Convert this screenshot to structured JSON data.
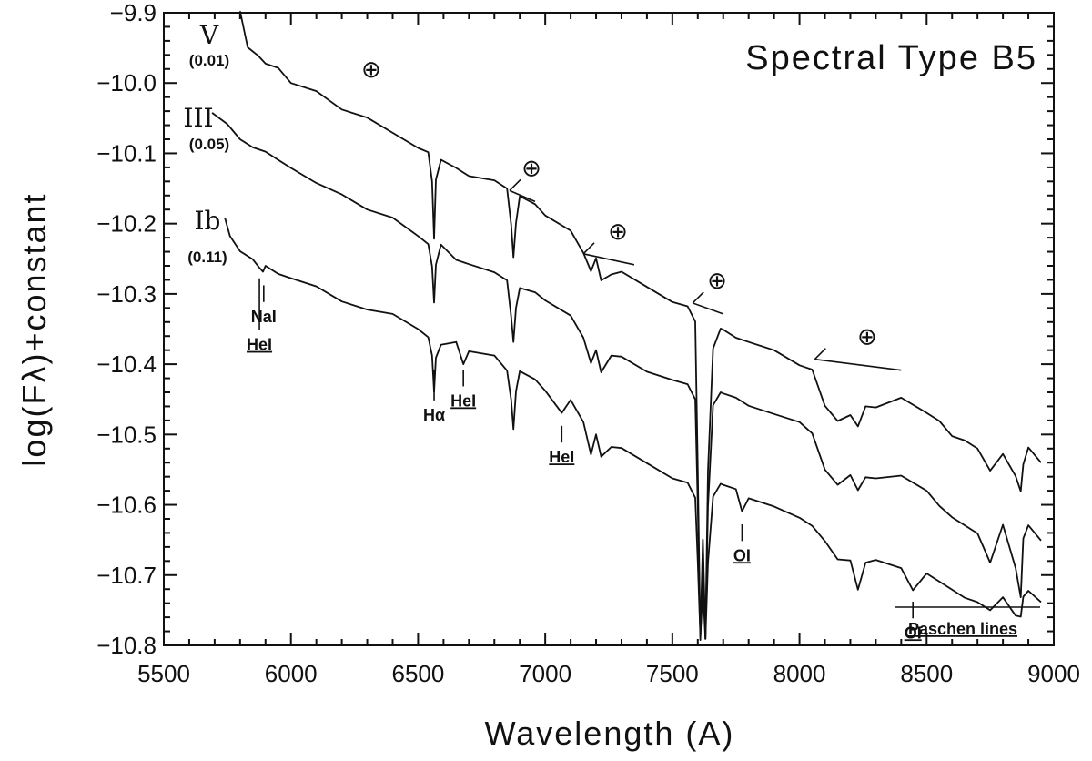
{
  "chart_data": {
    "type": "line",
    "title": "Spectral Type B5",
    "xlabel": "Wavelength (A)",
    "ylabel": "log(Fλ)+constant",
    "xlim": [
      5500,
      9000
    ],
    "ylim": [
      -10.8,
      -9.9
    ],
    "xticks": [
      5500,
      6000,
      6500,
      7000,
      7500,
      8000,
      8500,
      9000
    ],
    "yticks": [
      -9.9,
      -10.0,
      -10.1,
      -10.2,
      -10.3,
      -10.4,
      -10.5,
      -10.6,
      -10.7,
      -10.8
    ],
    "xtick_labels": [
      "5500",
      "6000",
      "6500",
      "7000",
      "7500",
      "8000",
      "8500",
      "9000"
    ],
    "ytick_labels": [
      "−9.9",
      "−10.0",
      "−10.1",
      "−10.2",
      "−10.3",
      "−10.4",
      "−10.5",
      "−10.6",
      "−10.7",
      "−10.8"
    ],
    "series": [
      {
        "name": "V",
        "sublabel": "(0.01)",
        "x": [
          5800,
          5830,
          5870,
          5900,
          5950,
          6000,
          6100,
          6200,
          6300,
          6400,
          6500,
          6540,
          6555,
          6563,
          6570,
          6590,
          6650,
          6700,
          6800,
          6850,
          6866,
          6875,
          6885,
          6900,
          6960,
          7000,
          7100,
          7150,
          7180,
          7200,
          7220,
          7260,
          7300,
          7400,
          7500,
          7560,
          7590,
          7600,
          7610,
          7620,
          7630,
          7640,
          7660,
          7690,
          7700,
          7750,
          7800,
          7900,
          8000,
          8050,
          8100,
          8150,
          8200,
          8230,
          8260,
          8300,
          8400,
          8500,
          8550,
          8600,
          8650,
          8700,
          8750,
          8800,
          8850,
          8870,
          8880,
          8900,
          8950
        ],
        "values": [
          -9.9,
          -9.95,
          -9.96,
          -9.97,
          -9.98,
          -10.0,
          -10.01,
          -10.04,
          -10.05,
          -10.07,
          -10.09,
          -10.1,
          -10.14,
          -10.22,
          -10.14,
          -10.11,
          -10.12,
          -10.13,
          -10.14,
          -10.15,
          -10.2,
          -10.25,
          -10.2,
          -10.16,
          -10.17,
          -10.19,
          -10.21,
          -10.24,
          -10.27,
          -10.25,
          -10.28,
          -10.27,
          -10.27,
          -10.29,
          -10.31,
          -10.32,
          -10.34,
          -10.55,
          -10.79,
          -10.68,
          -10.79,
          -10.55,
          -10.38,
          -10.35,
          -10.35,
          -10.36,
          -10.37,
          -10.38,
          -10.4,
          -10.41,
          -10.46,
          -10.48,
          -10.47,
          -10.49,
          -10.46,
          -10.46,
          -10.45,
          -10.47,
          -10.48,
          -10.5,
          -10.51,
          -10.52,
          -10.55,
          -10.53,
          -10.56,
          -10.58,
          -10.54,
          -10.52,
          -10.54
        ]
      },
      {
        "name": "III",
        "sublabel": "(0.05)",
        "x": [
          5690,
          5750,
          5800,
          5850,
          5900,
          5950,
          6000,
          6100,
          6200,
          6300,
          6400,
          6500,
          6540,
          6555,
          6563,
          6570,
          6590,
          6650,
          6700,
          6800,
          6850,
          6866,
          6875,
          6885,
          6900,
          6960,
          7000,
          7100,
          7150,
          7180,
          7200,
          7220,
          7260,
          7300,
          7400,
          7500,
          7560,
          7590,
          7600,
          7610,
          7620,
          7630,
          7640,
          7660,
          7690,
          7700,
          7750,
          7800,
          7900,
          8000,
          8050,
          8100,
          8150,
          8200,
          8230,
          8260,
          8300,
          8400,
          8500,
          8550,
          8600,
          8650,
          8700,
          8750,
          8800,
          8850,
          8870,
          8880,
          8900,
          8950
        ],
        "values": [
          -10.04,
          -10.06,
          -10.08,
          -10.09,
          -10.1,
          -10.11,
          -10.12,
          -10.14,
          -10.16,
          -10.18,
          -10.19,
          -10.22,
          -10.23,
          -10.26,
          -10.31,
          -10.26,
          -10.23,
          -10.25,
          -10.26,
          -10.27,
          -10.28,
          -10.33,
          -10.37,
          -10.32,
          -10.29,
          -10.3,
          -10.31,
          -10.33,
          -10.36,
          -10.4,
          -10.38,
          -10.41,
          -10.39,
          -10.39,
          -10.41,
          -10.42,
          -10.43,
          -10.45,
          -10.6,
          -10.79,
          -10.65,
          -10.79,
          -10.6,
          -10.46,
          -10.44,
          -10.44,
          -10.45,
          -10.46,
          -10.47,
          -10.48,
          -10.5,
          -10.55,
          -10.57,
          -10.56,
          -10.58,
          -10.56,
          -10.56,
          -10.56,
          -10.58,
          -10.6,
          -10.62,
          -10.63,
          -10.64,
          -10.68,
          -10.63,
          -10.69,
          -10.73,
          -10.65,
          -10.63,
          -10.65
        ]
      },
      {
        "name": "Ib",
        "sublabel": "(0.11)",
        "x": [
          5740,
          5760,
          5800,
          5850,
          5875,
          5890,
          5900,
          5950,
          6000,
          6100,
          6200,
          6300,
          6400,
          6500,
          6540,
          6555,
          6563,
          6570,
          6590,
          6650,
          6678,
          6700,
          6800,
          6850,
          6866,
          6875,
          6885,
          6900,
          6960,
          7000,
          7065,
          7100,
          7150,
          7180,
          7200,
          7220,
          7260,
          7300,
          7400,
          7500,
          7560,
          7590,
          7600,
          7610,
          7620,
          7630,
          7640,
          7660,
          7690,
          7700,
          7750,
          7774,
          7800,
          7900,
          8000,
          8050,
          8100,
          8150,
          8200,
          8230,
          8260,
          8300,
          8400,
          8446,
          8500,
          8550,
          8600,
          8650,
          8700,
          8750,
          8800,
          8850,
          8870,
          8880,
          8900,
          8950
        ],
        "values": [
          -10.19,
          -10.22,
          -10.24,
          -10.25,
          -10.26,
          -10.27,
          -10.26,
          -10.27,
          -10.28,
          -10.29,
          -10.31,
          -10.32,
          -10.33,
          -10.35,
          -10.36,
          -10.39,
          -10.44,
          -10.39,
          -10.37,
          -10.37,
          -10.4,
          -10.38,
          -10.39,
          -10.41,
          -10.45,
          -10.49,
          -10.44,
          -10.41,
          -10.42,
          -10.44,
          -10.47,
          -10.45,
          -10.48,
          -10.53,
          -10.5,
          -10.53,
          -10.52,
          -10.52,
          -10.54,
          -10.56,
          -10.57,
          -10.59,
          -10.68,
          -10.79,
          -10.72,
          -10.79,
          -10.68,
          -10.59,
          -10.57,
          -10.57,
          -10.58,
          -10.61,
          -10.59,
          -10.6,
          -10.62,
          -10.63,
          -10.65,
          -10.68,
          -10.68,
          -10.72,
          -10.68,
          -10.68,
          -10.69,
          -10.72,
          -10.7,
          -10.71,
          -10.72,
          -10.73,
          -10.74,
          -10.75,
          -10.73,
          -10.76,
          -10.76,
          -10.73,
          -10.72,
          -10.74
        ]
      }
    ],
    "line_labels": [
      {
        "text": "HeI",
        "x": 5876,
        "anchor_y": -10.27,
        "label_y": -10.38
      },
      {
        "text": "NaI",
        "x": 5893,
        "anchor_y": -10.28,
        "label_y": -10.34
      },
      {
        "text": "Hα",
        "x": 6563,
        "anchor_y": -10.4,
        "label_y": -10.48
      },
      {
        "text": "HeI",
        "x": 6678,
        "anchor_y": -10.4,
        "label_y": -10.46
      },
      {
        "text": "HeI",
        "x": 7065,
        "anchor_y": -10.48,
        "label_y": -10.54
      },
      {
        "text": "OI",
        "x": 7774,
        "anchor_y": -10.62,
        "label_y": -10.68
      },
      {
        "text": "OI",
        "x": 8446,
        "anchor_y": -10.73,
        "label_y": -10.79
      }
    ],
    "telluric_bands": [
      {
        "x1": 6280,
        "x2": 6280,
        "y": -10.0
      },
      {
        "x1": 6860,
        "x2": 6960,
        "y": -10.14
      },
      {
        "x1": 7150,
        "x2": 7350,
        "y": -10.23
      },
      {
        "x1": 7580,
        "x2": 7700,
        "y": -10.3
      },
      {
        "x1": 8060,
        "x2": 8400,
        "y": -10.38
      }
    ],
    "annotation": "Paschen lines",
    "telluric_symbol": "⊕",
    "grid": false
  }
}
